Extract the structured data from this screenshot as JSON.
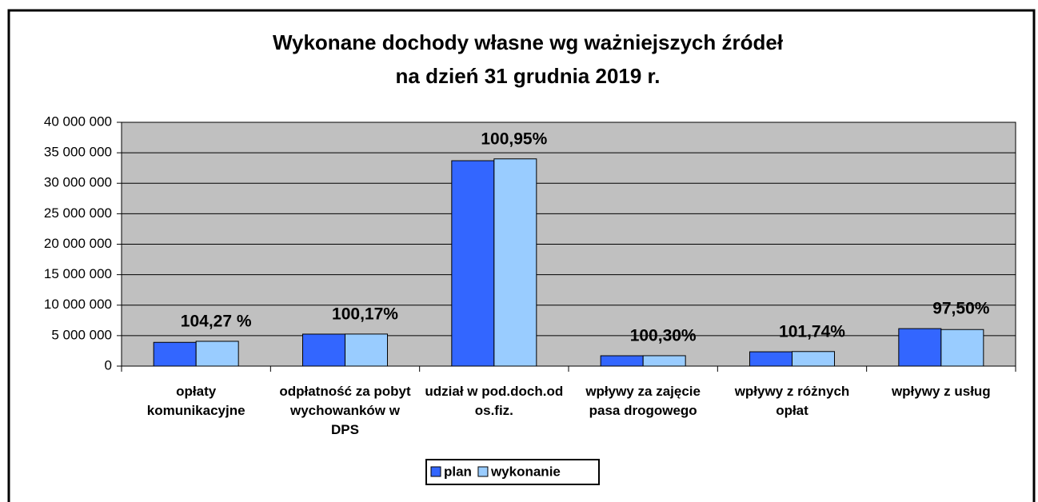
{
  "chart_data": {
    "type": "bar",
    "title": "Wykonane dochody własne wg ważniejszych źródeł",
    "subtitle": "na dzień 31 grudnia 2019 r.",
    "categories": [
      "opłaty komunikacyjne",
      "odpłatność za pobyt wychowanków w DPS",
      "udział w pod.doch.od os.fiz.",
      "wpływy za zajęcie pasa drogowego",
      "wpływy z różnych opłat",
      "wpływy z usług"
    ],
    "series": [
      {
        "name": "plan",
        "color": "#3366ff",
        "values": [
          3900000,
          5250000,
          33700000,
          1700000,
          2350000,
          6150000
        ]
      },
      {
        "name": "wykonanie",
        "color": "#99ccff",
        "values": [
          4070000,
          5260000,
          34000000,
          1710000,
          2390000,
          6000000
        ]
      }
    ],
    "annotations": [
      "104,27 %",
      "100,17%",
      "100,95%",
      "100,30%",
      "101,74%",
      "97,50%"
    ],
    "ylim": [
      0,
      40000000
    ],
    "yticks": [
      0,
      {
        "value": 5000000,
        "label": "5 000 000"
      },
      {
        "value": 10000000,
        "label": "10 000 000"
      },
      {
        "value": 15000000,
        "label": "15 000 000"
      },
      {
        "value": 20000000,
        "label": "20 000 000"
      },
      {
        "value": 25000000,
        "label": "25 000 000"
      },
      {
        "value": 30000000,
        "label": "30 000 000"
      },
      {
        "value": 35000000,
        "label": "35 000 000"
      },
      {
        "value": 40000000,
        "label": "40 000 000"
      }
    ],
    "grid": true,
    "legend": "bottom"
  }
}
